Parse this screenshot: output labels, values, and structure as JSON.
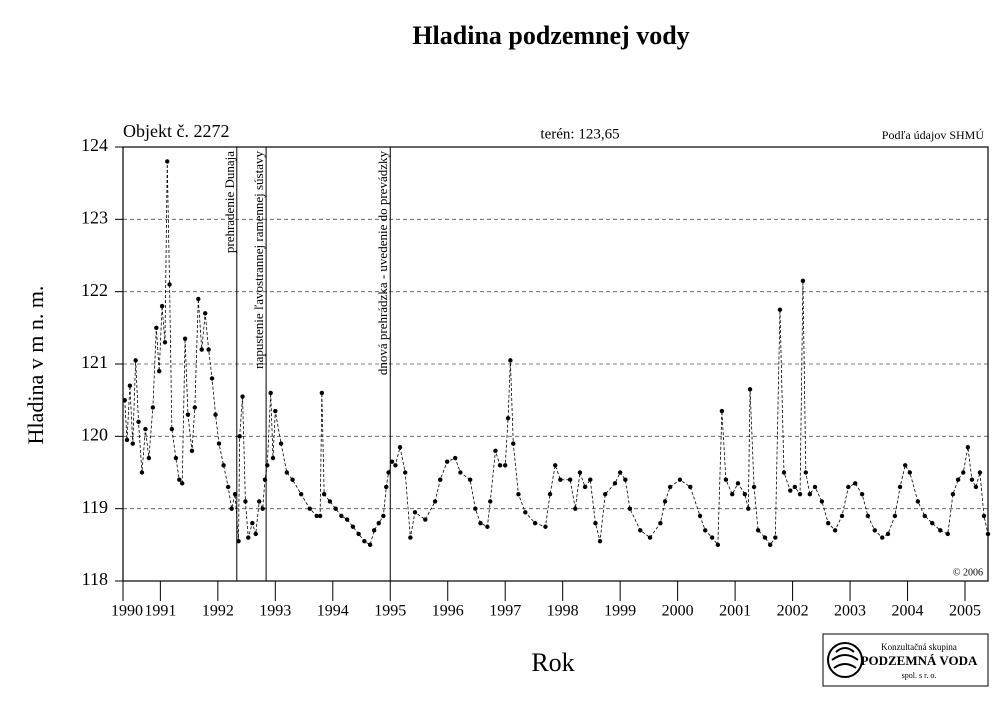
{
  "chart_data": {
    "type": "line",
    "title": "Hladina podzemnej vody",
    "object_label": "Objekt č. 2272",
    "terrain_label": "terén: 123,65",
    "source": "Podľa údajov SHMÚ",
    "copyright": "© 2006",
    "x_label": "Rok",
    "y_label": "Hladina v m n. m.",
    "logo": {
      "line1": "Konzultačná skupina",
      "line2": "PODZEMNÁ VODA",
      "line3": "spol. s r. o."
    },
    "xlim": [
      1990.35,
      2005.4
    ],
    "ylim": [
      118,
      124
    ],
    "xticks": [
      {
        "value": 1990.35,
        "label": "1990"
      },
      1991,
      1992,
      1993,
      1994,
      1995,
      1996,
      1997,
      1998,
      1999,
      2000,
      2001,
      2002,
      2003,
      2004,
      2005
    ],
    "yticks": [
      118,
      119,
      120,
      121,
      122,
      123,
      124
    ],
    "grid": true,
    "events": [
      {
        "x": 1992.33,
        "label": "prehradenie Dunaja"
      },
      {
        "x": 1992.84,
        "label": "napustenie ľavostrannej ramennej sústavy"
      },
      {
        "x": 1995.0,
        "label": "dnová prehrádzka - uvedenie do prevádzky"
      }
    ],
    "series": [
      {
        "color": "#000000",
        "x": [
          1990.38,
          1990.42,
          1990.47,
          1990.52,
          1990.57,
          1990.62,
          1990.68,
          1990.74,
          1990.8,
          1990.87,
          1990.93,
          1990.98,
          1991.03,
          1991.08,
          1991.12,
          1991.16,
          1991.2,
          1991.27,
          1991.33,
          1991.38,
          1991.43,
          1991.48,
          1991.55,
          1991.6,
          1991.66,
          1991.72,
          1991.78,
          1991.84,
          1991.9,
          1991.96,
          1992.02,
          1992.1,
          1992.18,
          1992.24,
          1992.3,
          1992.36,
          1992.38,
          1992.43,
          1992.48,
          1992.53,
          1992.6,
          1992.66,
          1992.72,
          1992.78,
          1992.82,
          1992.86,
          1992.92,
          1992.96,
          1993.0,
          1993.1,
          1993.2,
          1993.3,
          1993.45,
          1993.6,
          1993.72,
          1993.78,
          1993.81,
          1993.85,
          1993.95,
          1994.05,
          1994.15,
          1994.25,
          1994.35,
          1994.45,
          1994.55,
          1994.65,
          1994.72,
          1994.8,
          1994.88,
          1994.93,
          1994.97,
          1995.03,
          1995.09,
          1995.17,
          1995.26,
          1995.35,
          1995.43,
          1995.61,
          1995.78,
          1995.87,
          1995.99,
          1996.13,
          1996.22,
          1996.39,
          1996.48,
          1996.57,
          1996.69,
          1996.74,
          1996.83,
          1996.91,
          1997.0,
          1997.05,
          1997.09,
          1997.14,
          1997.23,
          1997.35,
          1997.52,
          1997.7,
          1997.78,
          1997.87,
          1997.96,
          1998.13,
          1998.22,
          1998.3,
          1998.39,
          1998.48,
          1998.57,
          1998.65,
          1998.74,
          1998.91,
          1999.0,
          1999.09,
          1999.17,
          1999.35,
          1999.52,
          1999.7,
          1999.78,
          1999.87,
          2000.04,
          2000.22,
          2000.39,
          2000.48,
          2000.6,
          2000.7,
          2000.77,
          2000.84,
          2000.95,
          2001.05,
          2001.17,
          2001.23,
          2001.26,
          2001.33,
          2001.4,
          2001.52,
          2001.61,
          2001.7,
          2001.78,
          2001.85,
          2001.96,
          2002.04,
          2002.13,
          2002.18,
          2002.23,
          2002.3,
          2002.39,
          2002.51,
          2002.62,
          2002.74,
          2002.86,
          2002.97,
          2003.09,
          2003.21,
          2003.31,
          2003.43,
          2003.56,
          2003.66,
          2003.78,
          2003.87,
          2003.96,
          2004.04,
          2004.18,
          2004.3,
          2004.43,
          2004.57,
          2004.7,
          2004.79,
          2004.88,
          2004.97,
          2005.05,
          2005.12,
          2005.19,
          2005.26,
          2005.33,
          2005.4
        ],
        "values": [
          120.5,
          119.95,
          120.7,
          119.9,
          121.05,
          120.2,
          119.5,
          120.1,
          119.7,
          120.4,
          121.5,
          120.9,
          121.8,
          121.3,
          123.8,
          122.1,
          120.1,
          119.7,
          119.4,
          119.35,
          121.35,
          120.3,
          119.8,
          120.4,
          121.9,
          121.2,
          121.7,
          121.2,
          120.8,
          120.3,
          119.9,
          119.6,
          119.3,
          119.0,
          119.2,
          118.55,
          120.0,
          120.55,
          119.1,
          118.6,
          118.8,
          118.65,
          119.1,
          119.0,
          119.4,
          119.6,
          120.6,
          119.7,
          120.35,
          119.9,
          119.5,
          119.4,
          119.2,
          119.0,
          118.9,
          118.9,
          120.6,
          119.2,
          119.1,
          119.0,
          118.9,
          118.85,
          118.75,
          118.65,
          118.55,
          118.5,
          118.7,
          118.8,
          118.9,
          119.3,
          119.5,
          119.65,
          119.6,
          119.85,
          119.5,
          118.6,
          118.95,
          118.85,
          119.1,
          119.4,
          119.65,
          119.7,
          119.5,
          119.4,
          119.0,
          118.8,
          118.75,
          119.1,
          119.8,
          119.6,
          119.6,
          120.25,
          121.05,
          119.9,
          119.2,
          118.95,
          118.8,
          118.75,
          119.2,
          119.6,
          119.4,
          119.4,
          119.0,
          119.5,
          119.3,
          119.4,
          118.8,
          118.55,
          119.2,
          119.35,
          119.5,
          119.4,
          119.0,
          118.7,
          118.6,
          118.8,
          119.1,
          119.3,
          119.4,
          119.3,
          118.9,
          118.7,
          118.6,
          118.5,
          120.35,
          119.4,
          119.2,
          119.35,
          119.2,
          119.0,
          120.65,
          119.3,
          118.7,
          118.6,
          118.5,
          118.6,
          121.75,
          119.5,
          119.25,
          119.3,
          119.2,
          122.15,
          119.5,
          119.2,
          119.3,
          119.1,
          118.8,
          118.7,
          118.9,
          119.3,
          119.35,
          119.2,
          118.9,
          118.7,
          118.6,
          118.65,
          118.9,
          119.3,
          119.6,
          119.5,
          119.1,
          118.9,
          118.8,
          118.7,
          118.65,
          119.2,
          119.4,
          119.5,
          119.85,
          119.4,
          119.3,
          119.5,
          118.9,
          118.65
        ]
      }
    ]
  }
}
